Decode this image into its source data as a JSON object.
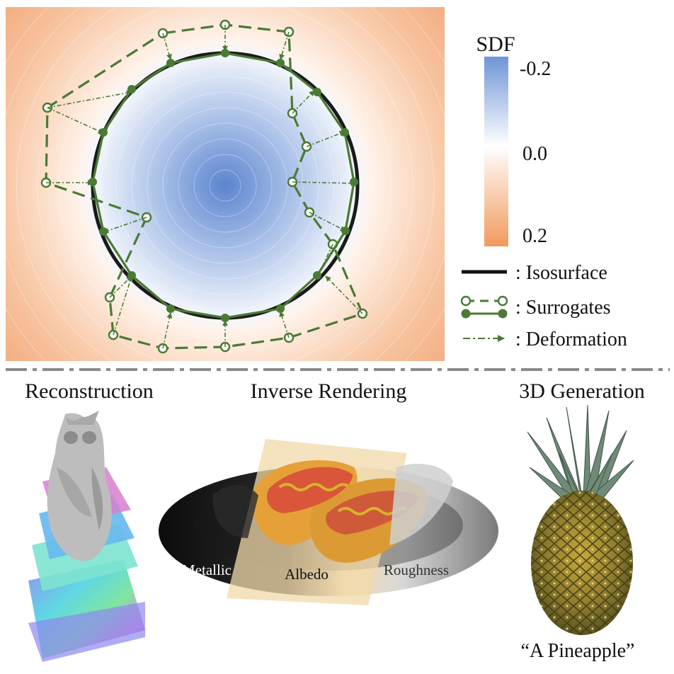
{
  "colorbar": {
    "title": "SDF",
    "ticks": [
      "-0.2",
      "0.0",
      "0.2"
    ],
    "colors": {
      "negative": "#6f95d6",
      "zero": "#ffffff",
      "positive": "#f19a5c"
    }
  },
  "legend": [
    {
      "key": "isosurface",
      "label": ": Isosurface"
    },
    {
      "key": "surrogates",
      "label": ": Surrogates"
    },
    {
      "key": "deformation",
      "label": ": Deformation"
    }
  ],
  "colors": {
    "surrogate_green": "#4a7a35",
    "isosurface": "#1a1a1a",
    "separator": "#8a8a8a"
  },
  "applications": {
    "reconstruction": {
      "title": "Reconstruction"
    },
    "inverse_rendering": {
      "title": "Inverse Rendering",
      "maps": [
        "Metallic",
        "Albedo",
        "Roughness"
      ]
    },
    "generation": {
      "title": "3D Generation",
      "caption": "“A Pineapple”"
    }
  }
}
